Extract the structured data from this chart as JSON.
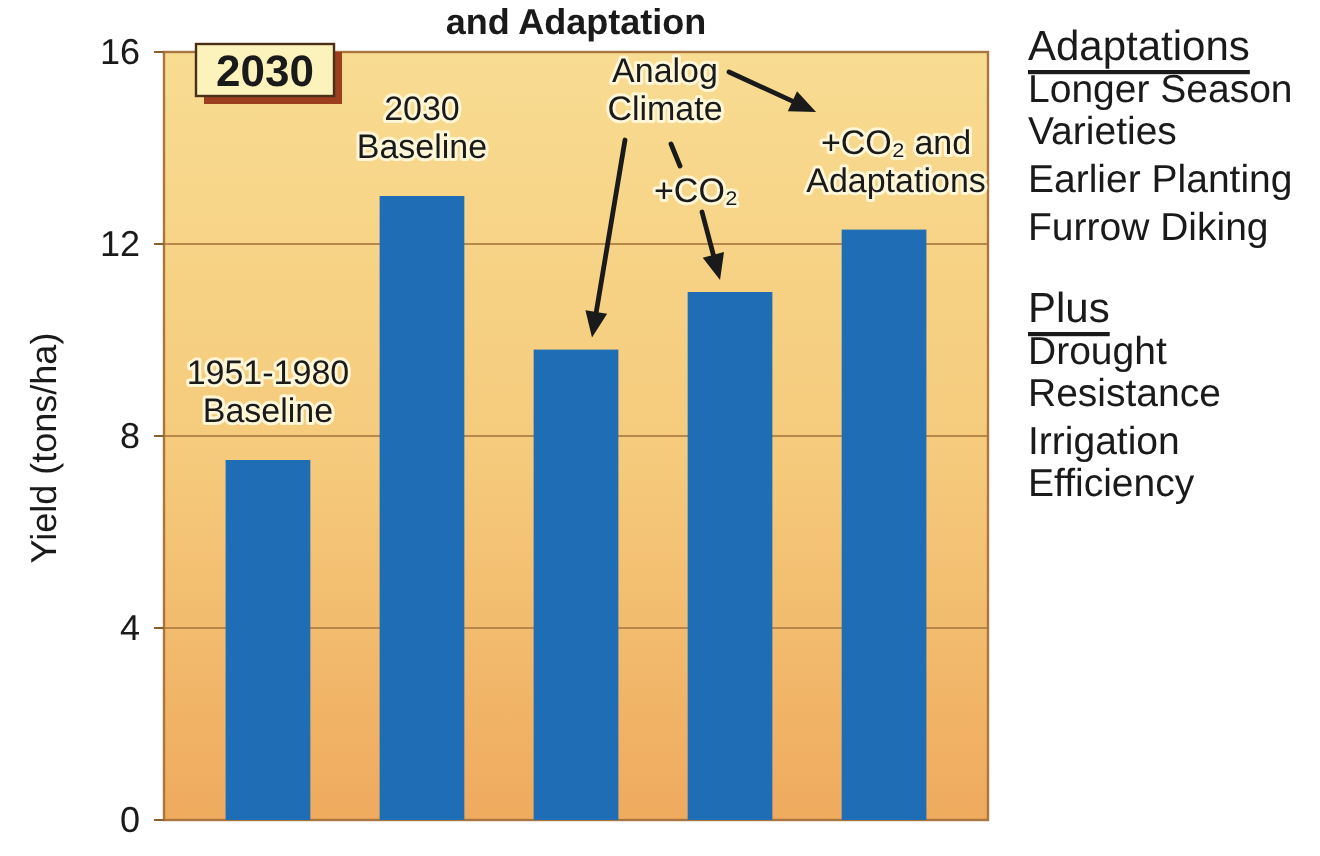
{
  "chart_data": {
    "type": "bar",
    "title": "and Adaptation",
    "ylabel": "Yield (tons/ha)",
    "categories": [
      null,
      null,
      null,
      null,
      null
    ],
    "values": [
      7.5,
      13.0,
      9.8,
      11.0,
      12.3
    ],
    "color": "#1f6db4",
    "ylim": [
      0,
      16
    ],
    "yticks": [
      0,
      4,
      8,
      12,
      16
    ],
    "grid": "y",
    "tick_labels": "y",
    "annotations": [
      "1951-1980 Baseline",
      "2030 Baseline",
      "Analog Climate",
      "+CO₂",
      "+CO₂ and Adaptations",
      "2030",
      "Adaptations",
      "Longer Season Varieties",
      "Earlier Planting",
      "Furrow Diking",
      "Plus",
      "Drought Resistance",
      "Irrigation Efficiency"
    ]
  }
}
